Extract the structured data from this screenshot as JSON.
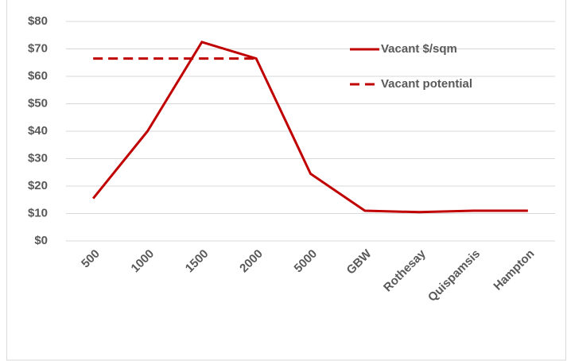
{
  "chart_data": {
    "type": "line",
    "categories": [
      "500",
      "1000",
      "1500",
      "2000",
      "5000",
      "GBW",
      "Rothesay",
      "Quispamsis",
      "Hampton"
    ],
    "series": [
      {
        "name": "Vacant $/sqm",
        "color": "#c00000",
        "dashed": false,
        "values": [
          15.5,
          40,
          72.5,
          66.5,
          24.5,
          11,
          10.5,
          11,
          11
        ]
      },
      {
        "name": "Vacant potential",
        "color": "#c00000",
        "dashed": true,
        "values": [
          66.5,
          66.5,
          66.5,
          66.5,
          null,
          null,
          null,
          null,
          null
        ]
      }
    ],
    "ylim": [
      0,
      80
    ],
    "yticks": [
      {
        "value": 0,
        "label": "$0"
      },
      {
        "value": 10,
        "label": "$10"
      },
      {
        "value": 20,
        "label": "$20"
      },
      {
        "value": 30,
        "label": "$30"
      },
      {
        "value": 40,
        "label": "$40"
      },
      {
        "value": 50,
        "label": "$50"
      },
      {
        "value": 60,
        "label": "$60"
      },
      {
        "value": 70,
        "label": "$70"
      },
      {
        "value": 80,
        "label": "$80"
      }
    ],
    "grid": true,
    "legend": "top-right"
  }
}
